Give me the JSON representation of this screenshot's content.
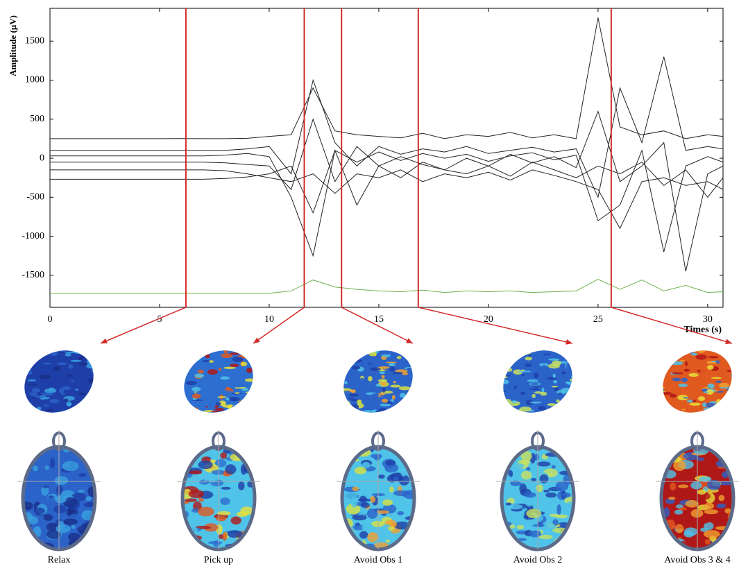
{
  "chart_data": {
    "type": "line",
    "y_label": "Amplitude (µV)",
    "x_label": "Times (s)",
    "x": [
      0,
      1,
      2,
      3,
      4,
      5,
      6,
      7,
      8,
      9,
      10,
      11,
      12,
      13,
      14,
      15,
      16,
      17,
      18,
      19,
      20,
      21,
      22,
      23,
      24,
      25,
      26,
      27,
      28,
      29,
      30,
      30.7
    ],
    "xlim": [
      0,
      30.7
    ],
    "xticks": [
      0,
      5,
      10,
      15,
      20,
      25,
      30
    ],
    "ylim": [
      -1910,
      1920
    ],
    "yticks": [
      -1500,
      -1000,
      -500,
      0,
      500,
      1000,
      1500
    ],
    "series": [
      {
        "color": "#222222",
        "values": [
          250,
          250,
          250,
          250,
          250,
          250,
          252,
          250,
          250,
          255,
          280,
          300,
          900,
          350,
          300,
          280,
          260,
          320,
          250,
          300,
          280,
          330,
          260,
          300,
          250,
          1800,
          400,
          300,
          350,
          250,
          300,
          280
        ]
      },
      {
        "color": "#222222",
        "values": [
          100,
          100,
          100,
          100,
          100,
          100,
          100,
          100,
          100,
          120,
          150,
          -200,
          1000,
          200,
          -100,
          150,
          50,
          120,
          80,
          150,
          60,
          100,
          140,
          80,
          120,
          -500,
          900,
          200,
          1300,
          100,
          150,
          120
        ]
      },
      {
        "color": "#222222",
        "values": [
          30,
          30,
          30,
          30,
          30,
          30,
          30,
          30,
          40,
          60,
          20,
          -500,
          -1250,
          100,
          -50,
          80,
          -30,
          60,
          0,
          50,
          -40,
          30,
          70,
          -20,
          40,
          -800,
          -600,
          100,
          -1200,
          -100,
          20,
          -50
        ]
      },
      {
        "color": "#222222",
        "values": [
          -50,
          -50,
          -50,
          -50,
          -50,
          -50,
          -50,
          -50,
          -60,
          -80,
          -100,
          -400,
          500,
          -300,
          150,
          -100,
          20,
          -80,
          -150,
          0,
          -100,
          50,
          -60,
          20,
          -120,
          600,
          -300,
          -100,
          200,
          -1450,
          -200,
          -100
        ]
      },
      {
        "color": "#222222",
        "values": [
          -150,
          -150,
          -150,
          -150,
          -150,
          -150,
          -150,
          -150,
          -160,
          -200,
          -250,
          -300,
          -200,
          -450,
          -200,
          -250,
          -150,
          -300,
          -200,
          -250,
          -180,
          -280,
          -150,
          -220,
          -300,
          -400,
          -900,
          -300,
          -250,
          -350,
          -300,
          -400
        ]
      },
      {
        "color": "#222222",
        "values": [
          -270,
          -270,
          -270,
          -270,
          -270,
          -270,
          -270,
          -270,
          -260,
          -240,
          -200,
          -100,
          -700,
          100,
          -600,
          -100,
          -250,
          -50,
          -150,
          -200,
          -100,
          -230,
          -50,
          -150,
          -250,
          -100,
          -200,
          -50,
          -350,
          -150,
          -500,
          -250
        ]
      },
      {
        "color": "#6ab04c",
        "values": [
          -1730,
          -1730,
          -1730,
          -1730,
          -1730,
          -1730,
          -1730,
          -1730,
          -1730,
          -1730,
          -1730,
          -1700,
          -1560,
          -1650,
          -1680,
          -1700,
          -1710,
          -1690,
          -1720,
          -1700,
          -1710,
          -1700,
          -1720,
          -1710,
          -1700,
          -1550,
          -1680,
          -1560,
          -1700,
          -1630,
          -1720,
          -1710
        ]
      }
    ],
    "event_color": "#d42a2a",
    "events": [
      {
        "x": 6.2,
        "label": "Relax"
      },
      {
        "x": 11.6,
        "label": "Pick up"
      },
      {
        "x": 13.3,
        "label": "Avoid Obs 1"
      },
      {
        "x": 16.8,
        "label": "Avoid Obs 2"
      },
      {
        "x": 25.6,
        "label": "Avoid Obs 3 & 4"
      }
    ]
  }
}
